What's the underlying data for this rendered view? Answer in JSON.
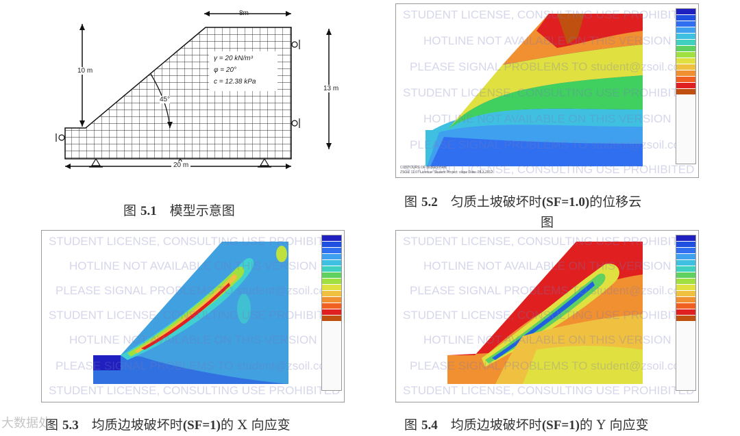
{
  "fig51": {
    "top_dim": "8m",
    "left_dim": "10 m",
    "right_dim": "13 m",
    "bottom_dim": "20 m",
    "angle": "45°",
    "gamma": "γ = 20 kN/m³",
    "phi": "φ = 20°",
    "c": "c = 12.38 kPa",
    "caption_prefix": "图 ",
    "caption_num": "5.1",
    "caption_text": "　模型示意图"
  },
  "fig52": {
    "caption_prefix": "图 ",
    "caption_num": "5.2",
    "caption_text": "　匀质土坡破坏时",
    "caption_bold": "(SF=1.0)",
    "caption_tail": "的位移云",
    "caption_line2": "图"
  },
  "fig53": {
    "caption_prefix": "图 ",
    "caption_num": "5.3",
    "caption_text": "　均质边坡破坏时",
    "caption_bold": "(SF=1)",
    "caption_tail": "的 X 向应变"
  },
  "fig54": {
    "caption_prefix": "图 ",
    "caption_num": "5.4",
    "caption_text": "　均质边坡破坏时",
    "caption_bold": "(SF=1)",
    "caption_tail": "的 Y 向应变"
  },
  "watermarks": {
    "w1": "STUDENT LICENSE, CONSULTING USE PROHIBITED",
    "w2": "HOTLINE NOT AVAILABLE ON THIS VERSION",
    "w3": "PLEASE SIGNAL PROBLEMS TO student@zsoil.com"
  },
  "plot_footer": {
    "line1": "CONTOURS OF displacement",
    "line2": "ZSOIL 11.07 Licence: Student  Project: slope  Date: 28.3.2012"
  },
  "logo_text": "大数据处",
  "colors": {
    "red": "#e02020",
    "orange": "#f08030",
    "yellow": "#f0e040",
    "green": "#60d060",
    "cyan": "#40d0d0",
    "blue": "#2060e0",
    "darkblue": "#2020c0"
  }
}
